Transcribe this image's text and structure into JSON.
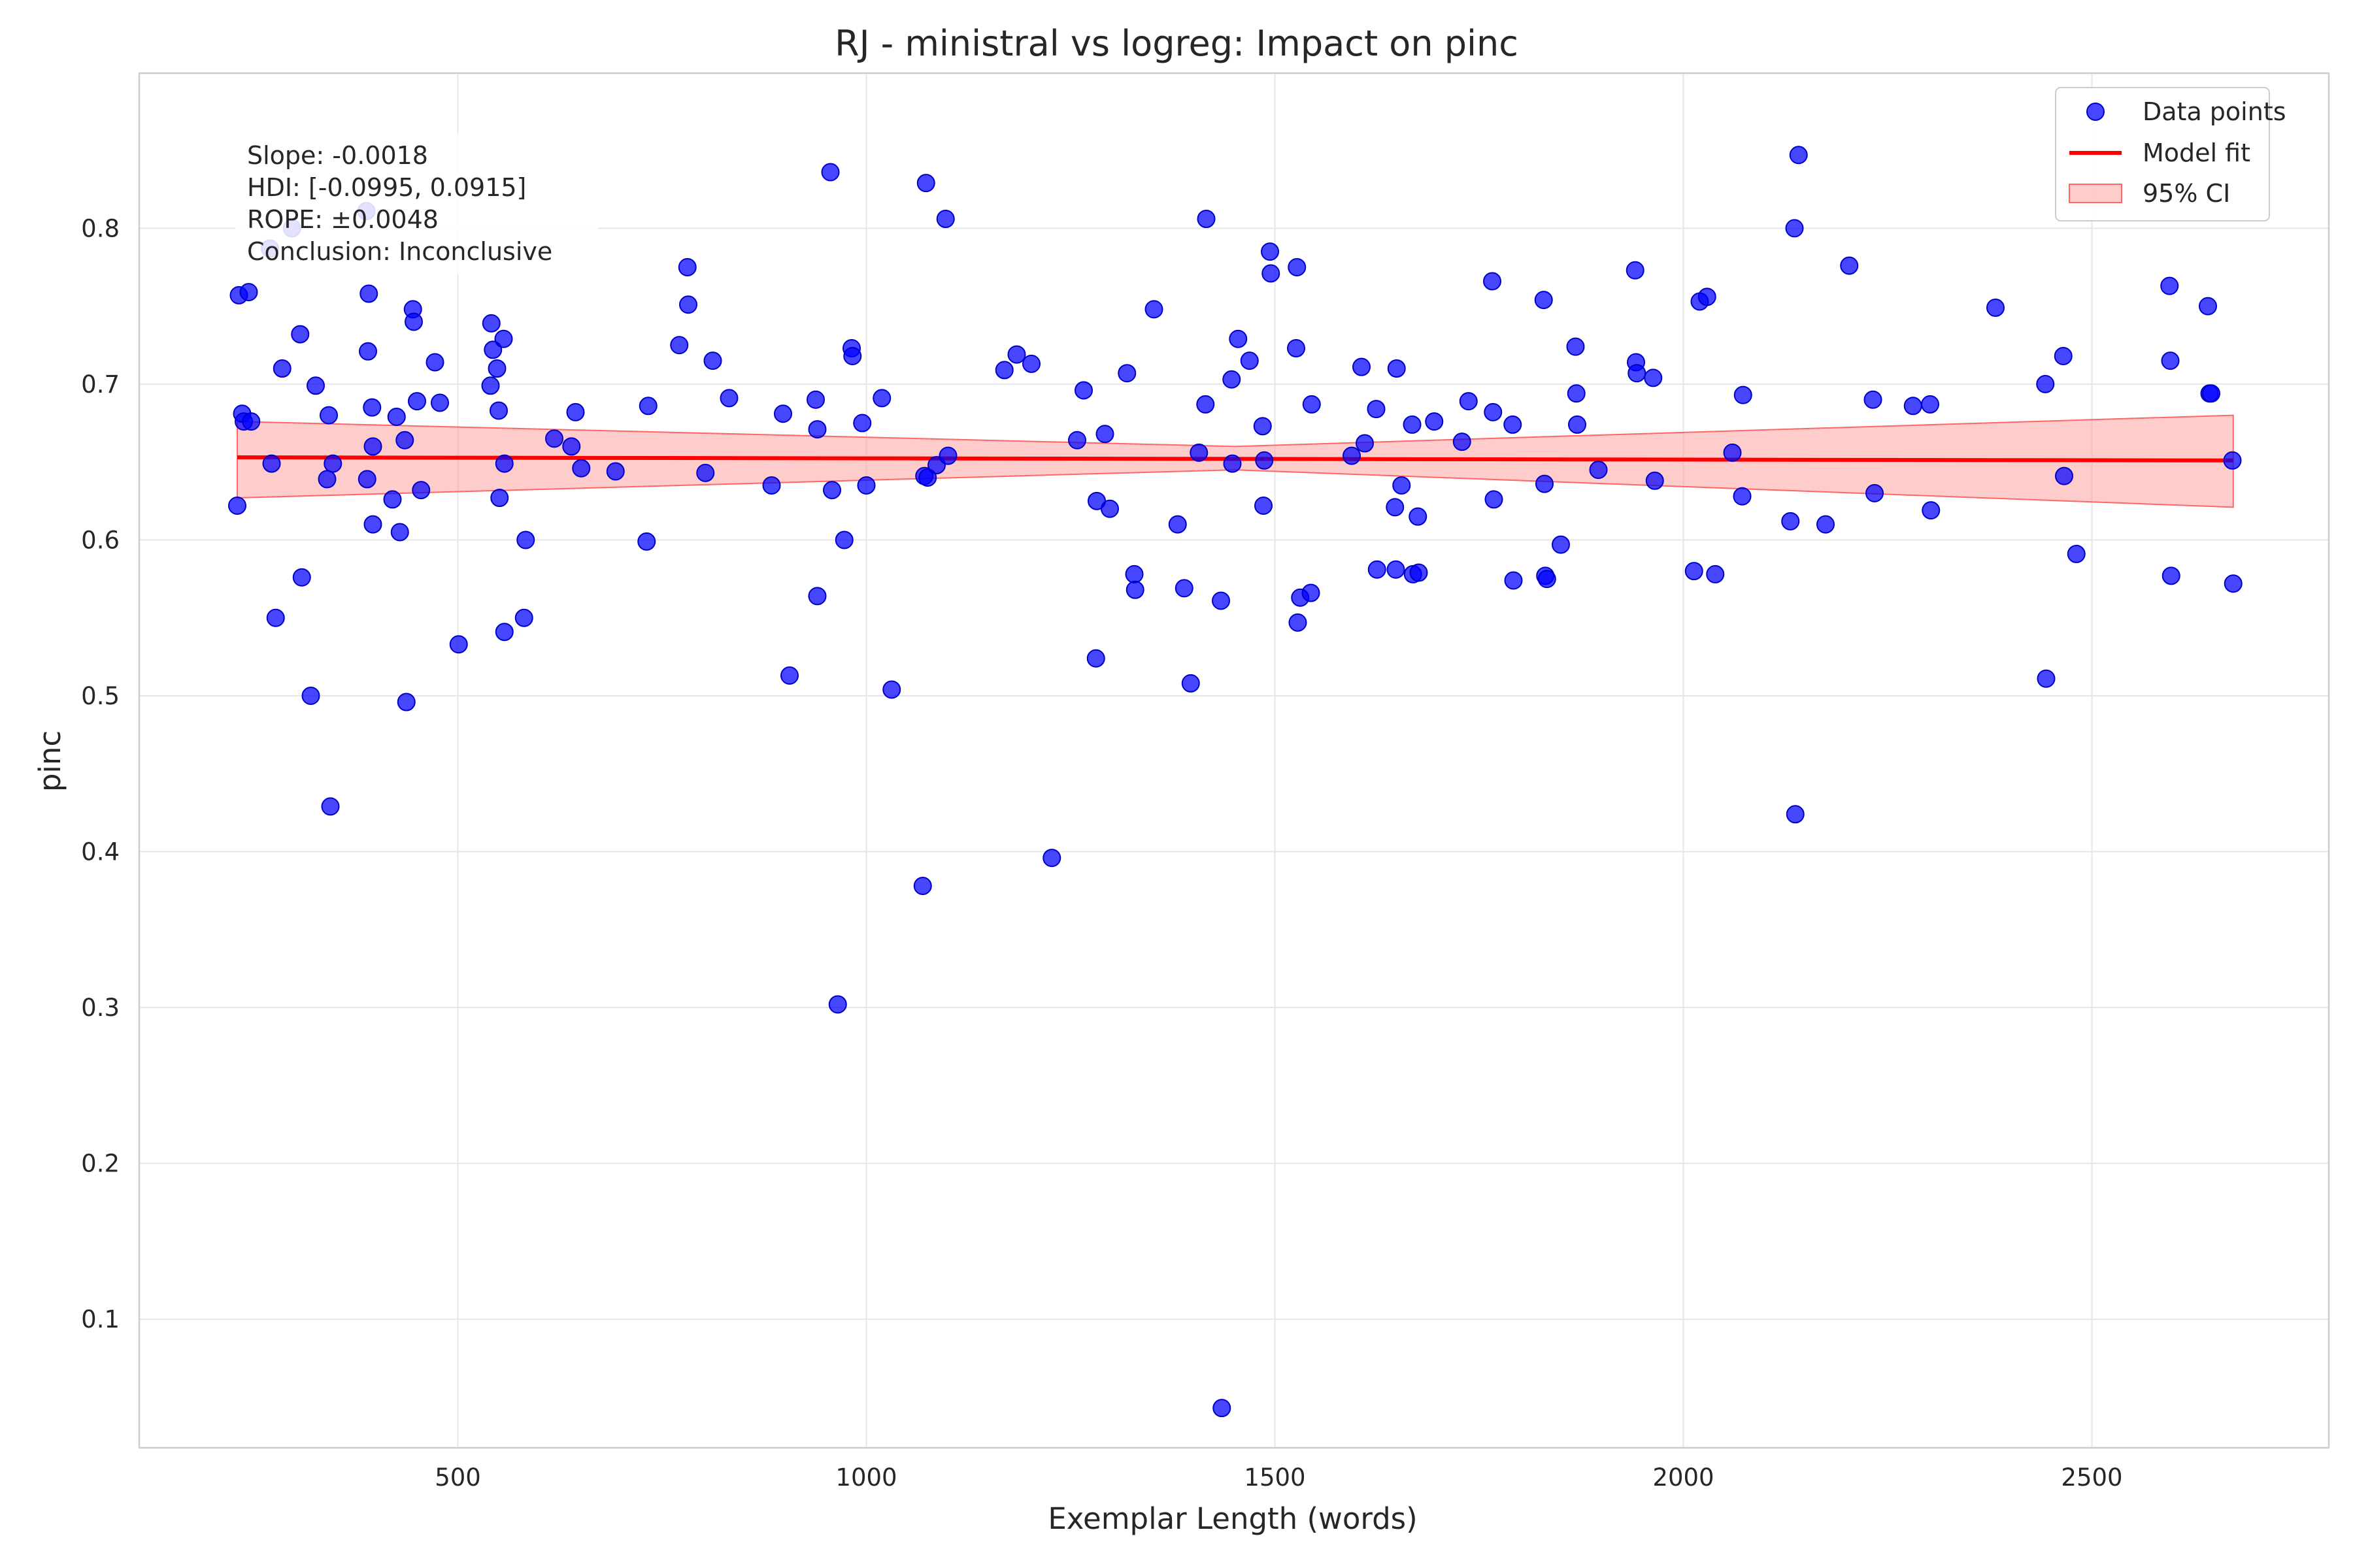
{
  "chart_data": {
    "type": "scatter",
    "title": "RJ - ministral vs logreg: Impact on pinc",
    "xlabel": "Exemplar Length (words)",
    "ylabel": "pinc",
    "xlim": [
      110,
      2790
    ],
    "ylim": [
      0.0175,
      0.8995
    ],
    "xticks": [
      500,
      1000,
      1500,
      2000,
      2500
    ],
    "xtick_labels": [
      "500",
      "1000",
      "1500",
      "2000",
      "2500"
    ],
    "yticks": [
      0.1,
      0.2,
      0.3,
      0.4,
      0.5,
      0.6,
      0.7,
      0.8
    ],
    "ytick_labels": [
      "0.1",
      "0.2",
      "0.3",
      "0.4",
      "0.5",
      "0.6",
      "0.7",
      "0.8"
    ],
    "grid": true,
    "legend": {
      "placement": "top-right",
      "entries": [
        "Data points",
        "Model fit",
        "95% CI"
      ]
    },
    "annotation": [
      "Slope: -0.0018",
      "HDI: [-0.0995, 0.0915]",
      "ROPE: ±0.0048",
      "Conclusion: Inconclusive"
    ],
    "series": [
      {
        "name": "Data points",
        "kind": "scatter",
        "color": "#0000ff",
        "points": [
          [
            232,
            0.757
          ],
          [
            236,
            0.681
          ],
          [
            238,
            0.676
          ],
          [
            230,
            0.622
          ],
          [
            244,
            0.759
          ],
          [
            247,
            0.676
          ],
          [
            270,
            0.787
          ],
          [
            272,
            0.649
          ],
          [
            277,
            0.55
          ],
          [
            285,
            0.71
          ],
          [
            297,
            0.8
          ],
          [
            307,
            0.732
          ],
          [
            309,
            0.576
          ],
          [
            320,
            0.5
          ],
          [
            326,
            0.699
          ],
          [
            340,
            0.639
          ],
          [
            342,
            0.68
          ],
          [
            344,
            0.429
          ],
          [
            347,
            0.649
          ],
          [
            388,
            0.811
          ],
          [
            389,
            0.639
          ],
          [
            390,
            0.721
          ],
          [
            391,
            0.758
          ],
          [
            395,
            0.685
          ],
          [
            396,
            0.61
          ],
          [
            396,
            0.66
          ],
          [
            420,
            0.626
          ],
          [
            425,
            0.679
          ],
          [
            429,
            0.605
          ],
          [
            435,
            0.664
          ],
          [
            437,
            0.496
          ],
          [
            445,
            0.748
          ],
          [
            446,
            0.74
          ],
          [
            450,
            0.689
          ],
          [
            455,
            0.632
          ],
          [
            472,
            0.714
          ],
          [
            478,
            0.688
          ],
          [
            501,
            0.533
          ],
          [
            540,
            0.699
          ],
          [
            541,
            0.739
          ],
          [
            543,
            0.722
          ],
          [
            548,
            0.71
          ],
          [
            550,
            0.683
          ],
          [
            551,
            0.627
          ],
          [
            556,
            0.729
          ],
          [
            557,
            0.649
          ],
          [
            557,
            0.541
          ],
          [
            581,
            0.55
          ],
          [
            583,
            0.6
          ],
          [
            618,
            0.665
          ],
          [
            639,
            0.66
          ],
          [
            644,
            0.682
          ],
          [
            651,
            0.646
          ],
          [
            693,
            0.644
          ],
          [
            731,
            0.599
          ],
          [
            733,
            0.686
          ],
          [
            771,
            0.725
          ],
          [
            781,
            0.775
          ],
          [
            782,
            0.751
          ],
          [
            803,
            0.643
          ],
          [
            812,
            0.715
          ],
          [
            832,
            0.691
          ],
          [
            884,
            0.635
          ],
          [
            898,
            0.681
          ],
          [
            906,
            0.513
          ],
          [
            938,
            0.69
          ],
          [
            940,
            0.671
          ],
          [
            940,
            0.564
          ],
          [
            956,
            0.836
          ],
          [
            958,
            0.632
          ],
          [
            965,
            0.302
          ],
          [
            973,
            0.6
          ],
          [
            982,
            0.723
          ],
          [
            983,
            0.718
          ],
          [
            995,
            0.675
          ],
          [
            1000,
            0.635
          ],
          [
            1019,
            0.691
          ],
          [
            1031,
            0.504
          ],
          [
            1069,
            0.378
          ],
          [
            1071,
            0.641
          ],
          [
            1073,
            0.829
          ],
          [
            1075,
            0.64
          ],
          [
            1086,
            0.648
          ],
          [
            1097,
            0.806
          ],
          [
            1100,
            0.654
          ],
          [
            1169,
            0.709
          ],
          [
            1184,
            0.719
          ],
          [
            1202,
            0.713
          ],
          [
            1227,
            0.396
          ],
          [
            1258,
            0.664
          ],
          [
            1266,
            0.696
          ],
          [
            1281,
            0.524
          ],
          [
            1282,
            0.625
          ],
          [
            1292,
            0.668
          ],
          [
            1298,
            0.62
          ],
          [
            1319,
            0.707
          ],
          [
            1328,
            0.578
          ],
          [
            1329,
            0.568
          ],
          [
            1352,
            0.748
          ],
          [
            1381,
            0.61
          ],
          [
            1389,
            0.569
          ],
          [
            1397,
            0.508
          ],
          [
            1407,
            0.656
          ],
          [
            1415,
            0.687
          ],
          [
            1416,
            0.806
          ],
          [
            1434,
            0.561
          ],
          [
            1435,
            0.043
          ],
          [
            1447,
            0.703
          ],
          [
            1448,
            0.649
          ],
          [
            1455,
            0.729
          ],
          [
            1469,
            0.715
          ],
          [
            1485,
            0.673
          ],
          [
            1486,
            0.622
          ],
          [
            1487,
            0.651
          ],
          [
            1494,
            0.785
          ],
          [
            1495,
            0.771
          ],
          [
            1526,
            0.723
          ],
          [
            1527,
            0.775
          ],
          [
            1528,
            0.547
          ],
          [
            1531,
            0.563
          ],
          [
            1544,
            0.566
          ],
          [
            1545,
            0.687
          ],
          [
            1594,
            0.654
          ],
          [
            1606,
            0.711
          ],
          [
            1610,
            0.662
          ],
          [
            1624,
            0.684
          ],
          [
            1625,
            0.581
          ],
          [
            1647,
            0.621
          ],
          [
            1648,
            0.581
          ],
          [
            1649,
            0.71
          ],
          [
            1655,
            0.635
          ],
          [
            1668,
            0.674
          ],
          [
            1669,
            0.578
          ],
          [
            1675,
            0.615
          ],
          [
            1676,
            0.579
          ],
          [
            1695,
            0.676
          ],
          [
            1729,
            0.663
          ],
          [
            1737,
            0.689
          ],
          [
            1766,
            0.766
          ],
          [
            1767,
            0.682
          ],
          [
            1768,
            0.626
          ],
          [
            1791,
            0.674
          ],
          [
            1792,
            0.574
          ],
          [
            1829,
            0.754
          ],
          [
            1830,
            0.636
          ],
          [
            1831,
            0.577
          ],
          [
            1833,
            0.575
          ],
          [
            1850,
            0.597
          ],
          [
            1868,
            0.724
          ],
          [
            1869,
            0.694
          ],
          [
            1870,
            0.674
          ],
          [
            1896,
            0.645
          ],
          [
            1941,
            0.773
          ],
          [
            1942,
            0.714
          ],
          [
            1943,
            0.707
          ],
          [
            1963,
            0.704
          ],
          [
            1965,
            0.638
          ],
          [
            2013,
            0.58
          ],
          [
            2020,
            0.753
          ],
          [
            2029,
            0.756
          ],
          [
            2039,
            0.578
          ],
          [
            2060,
            0.656
          ],
          [
            2072,
            0.628
          ],
          [
            2073,
            0.693
          ],
          [
            2131,
            0.612
          ],
          [
            2136,
            0.8
          ],
          [
            2137,
            0.424
          ],
          [
            2141,
            0.847
          ],
          [
            2174,
            0.61
          ],
          [
            2203,
            0.776
          ],
          [
            2232,
            0.69
          ],
          [
            2234,
            0.63
          ],
          [
            2281,
            0.686
          ],
          [
            2302,
            0.687
          ],
          [
            2303,
            0.619
          ],
          [
            2382,
            0.749
          ],
          [
            2443,
            0.7
          ],
          [
            2444,
            0.511
          ],
          [
            2465,
            0.718
          ],
          [
            2466,
            0.641
          ],
          [
            2481,
            0.591
          ],
          [
            2595,
            0.763
          ],
          [
            2596,
            0.715
          ],
          [
            2597,
            0.577
          ],
          [
            2642,
            0.75
          ],
          [
            2644,
            0.694
          ],
          [
            2646,
            0.694
          ],
          [
            2672,
            0.651
          ],
          [
            2673,
            0.572
          ]
        ]
      },
      {
        "name": "Model fit",
        "kind": "line",
        "color": "#ff0000",
        "x": [
          230,
          2673
        ],
        "y": [
          0.653,
          0.651
        ]
      },
      {
        "name": "95% CI",
        "kind": "band",
        "color": "#ff9999",
        "x": [
          230,
          1451,
          2673
        ],
        "lower": [
          0.627,
          0.645,
          0.621
        ],
        "upper": [
          0.676,
          0.66,
          0.68
        ]
      }
    ]
  }
}
